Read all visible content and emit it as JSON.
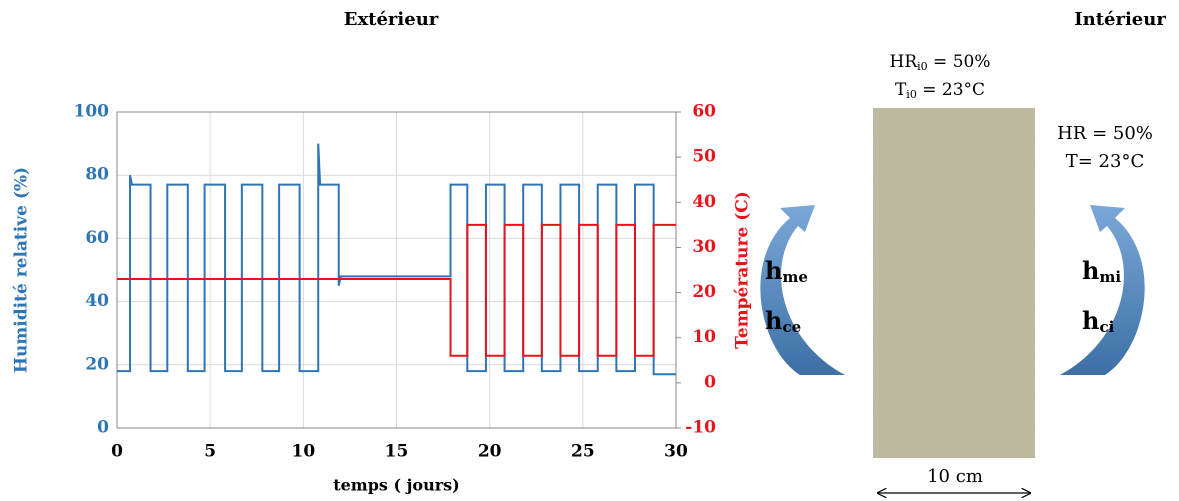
{
  "chart_data": {
    "type": "line",
    "x_label": "temps ( jours)",
    "y_label": "Humidité relative (%)",
    "y2_label": "Température (C)",
    "xlim": [
      0,
      30
    ],
    "xticks": [
      0,
      5,
      10,
      15,
      20,
      25,
      30
    ],
    "ylim": [
      0,
      100
    ],
    "yticks": [
      0,
      20,
      40,
      60,
      80,
      100
    ],
    "y2lim": [
      -10,
      60
    ],
    "y2ticks": [
      -10,
      0,
      10,
      20,
      30,
      40,
      50,
      60
    ],
    "grid": true,
    "series": [
      {
        "name": "Humidité relative",
        "color": "#2e75b6",
        "axis": "y",
        "x": [
          0,
          0.7,
          0.7,
          0.8,
          1.8,
          1.8,
          2.7,
          2.7,
          3.8,
          3.8,
          4.7,
          4.7,
          5.8,
          5.8,
          6.7,
          6.7,
          7.8,
          7.8,
          8.7,
          8.7,
          9.8,
          9.8,
          10.8,
          10.8,
          10.9,
          11.9,
          11.9,
          12.0,
          17.9,
          17.9,
          18.8,
          18.8,
          19.8,
          19.8,
          20.8,
          20.8,
          21.8,
          21.8,
          22.8,
          22.8,
          23.8,
          23.8,
          24.8,
          24.8,
          25.8,
          25.8,
          26.8,
          26.8,
          27.8,
          27.8,
          28.8,
          28.8,
          30
        ],
        "values": [
          18,
          18,
          80,
          77,
          77,
          18,
          18,
          77,
          77,
          18,
          18,
          77,
          77,
          18,
          18,
          77,
          77,
          18,
          18,
          77,
          77,
          18,
          18,
          90,
          77,
          77,
          45,
          48,
          48,
          77,
          77,
          18,
          18,
          77,
          77,
          18,
          18,
          77,
          77,
          18,
          18,
          77,
          77,
          18,
          18,
          77,
          77,
          18,
          18,
          77,
          77,
          17,
          17
        ]
      },
      {
        "name": "Température",
        "color": "#e8141b",
        "axis": "y2",
        "x": [
          0,
          17.9,
          17.9,
          18.8,
          18.8,
          19.8,
          19.8,
          20.8,
          20.8,
          21.8,
          21.8,
          22.8,
          22.8,
          23.8,
          23.8,
          24.8,
          24.8,
          25.8,
          25.8,
          26.8,
          26.8,
          27.8,
          27.8,
          28.8,
          28.8,
          30
        ],
        "values": [
          23,
          23,
          6,
          6,
          35,
          35,
          6,
          6,
          35,
          35,
          6,
          6,
          35,
          35,
          6,
          6,
          35,
          35,
          6,
          6,
          35,
          35,
          6,
          6,
          35,
          35
        ]
      }
    ]
  },
  "diagram": {
    "exterior": "Extérieur",
    "interior": "Intérieur",
    "initial_humidity": {
      "symbol": "HR",
      "subscript": "i0",
      "text": " = 50%"
    },
    "initial_temperature": {
      "symbol": "T",
      "subscript": "i0",
      "text": " = 23°C"
    },
    "interior_humidity": "HR = 50%",
    "interior_temperature": "T= 23°C",
    "h_me": {
      "symbol": "h",
      "subscript": "me"
    },
    "h_ce": {
      "symbol": "h",
      "subscript": "ce"
    },
    "h_mi": {
      "symbol": "h",
      "subscript": "mi"
    },
    "h_ci": {
      "symbol": "h",
      "subscript": "ci"
    },
    "thickness": "10 cm"
  }
}
